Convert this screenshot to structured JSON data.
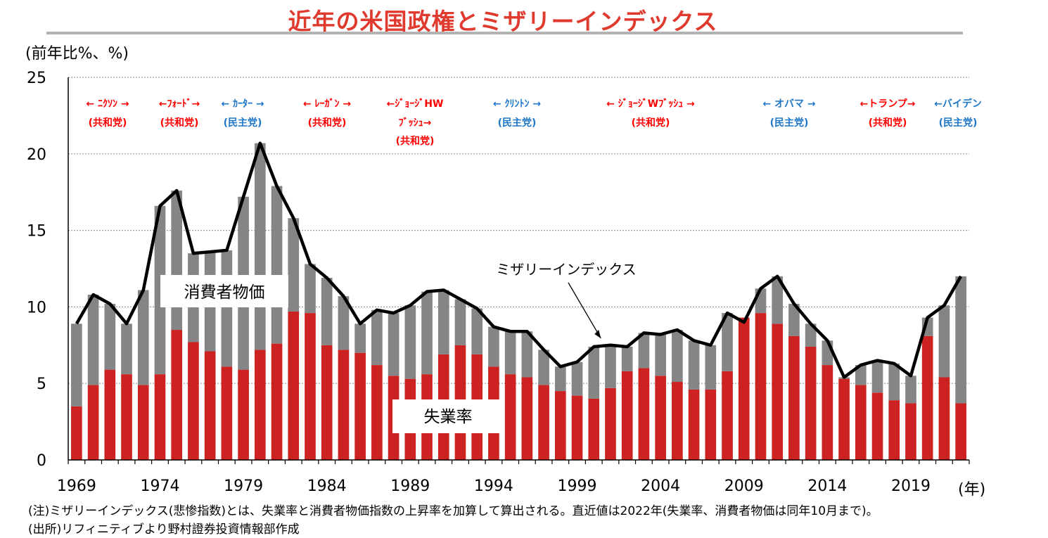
{
  "title": "近年の米国政権とミザリーインデックス",
  "y_unit": "(前年比%、%)",
  "x_unit": "(年)",
  "notes": [
    "(注)ミザリーインデックス(悲惨指数)とは、失業率と消費者物価指数の上昇率を加算して算出される。直近値は2022年(失業率、消費者物価は同年10月まで)。",
    "(出所)リフィニティブより野村證券投資情報部作成"
  ],
  "colors": {
    "title": "#e03a2e",
    "unemployment": "#cc2222",
    "cpi": "#858585",
    "misery_line": "#000000",
    "republican": "#ff0000",
    "democrat": "#1f77c8",
    "grid": "#999999"
  },
  "administrations": [
    {
      "name": "← ﾆｸｿﾝ →",
      "party": "(共和党)",
      "party_type": "republican"
    },
    {
      "name": "←ﾌｫｰﾄﾞ→",
      "party": "(共和党)",
      "party_type": "republican"
    },
    {
      "name": "← ｶｰﾀｰ →",
      "party": "(民主党)",
      "party_type": "democrat"
    },
    {
      "name": "← ﾚｰｶﾞﾝ →",
      "party": "(共和党)",
      "party_type": "republican"
    },
    {
      "name": "←ｼﾞｮｰｼﾞHW ﾌﾞｯｼｭ→",
      "party": "(共和党)",
      "party_type": "republican"
    },
    {
      "name": "← ｸﾘﾝﾄﾝ →",
      "party": "(民主党)",
      "party_type": "democrat"
    },
    {
      "name": "← ｼﾞｮｰｼﾞWﾌﾞｯｼｭ →",
      "party": "(共和党)",
      "party_type": "republican"
    },
    {
      "name": "← オバマ →",
      "party": "(民主党)",
      "party_type": "democrat"
    },
    {
      "name": "←トランプ→",
      "party": "(共和党)",
      "party_type": "republican"
    },
    {
      "name": "←バイデン",
      "party": "(民主党)",
      "party_type": "democrat"
    }
  ],
  "chart_data": {
    "type": "bar",
    "stacked": true,
    "x": [
      1969,
      1970,
      1971,
      1972,
      1973,
      1974,
      1975,
      1976,
      1977,
      1978,
      1979,
      1980,
      1981,
      1982,
      1983,
      1984,
      1985,
      1986,
      1987,
      1988,
      1989,
      1990,
      1991,
      1992,
      1993,
      1994,
      1995,
      1996,
      1997,
      1998,
      1999,
      2000,
      2001,
      2002,
      2003,
      2004,
      2005,
      2006,
      2007,
      2008,
      2009,
      2010,
      2011,
      2012,
      2013,
      2014,
      2015,
      2016,
      2017,
      2018,
      2019,
      2020,
      2021,
      2022
    ],
    "x_tick_labels": [
      "1969",
      "1974",
      "1979",
      "1984",
      "1989",
      "1994",
      "1999",
      "2004",
      "2009",
      "2014",
      "2019"
    ],
    "ylim": [
      0,
      25
    ],
    "y_ticks": [
      0,
      5,
      10,
      15,
      20,
      25
    ],
    "grid": true,
    "series": [
      {
        "name": "失業率",
        "kind": "bar",
        "values": [
          3.5,
          4.9,
          5.9,
          5.6,
          4.9,
          5.6,
          8.5,
          7.7,
          7.1,
          6.1,
          5.9,
          7.2,
          7.6,
          9.7,
          9.6,
          7.5,
          7.2,
          7.0,
          6.2,
          5.5,
          5.3,
          5.6,
          6.9,
          7.5,
          6.9,
          6.1,
          5.6,
          5.4,
          4.9,
          4.5,
          4.2,
          4.0,
          4.7,
          5.8,
          6.0,
          5.5,
          5.1,
          4.6,
          4.6,
          5.8,
          9.3,
          9.6,
          8.9,
          8.1,
          7.4,
          6.2,
          5.3,
          4.9,
          4.4,
          3.9,
          3.7,
          8.1,
          5.4,
          3.7
        ]
      },
      {
        "name": "消費者物価",
        "kind": "bar",
        "values": [
          5.4,
          5.9,
          4.3,
          3.3,
          6.2,
          11.0,
          9.1,
          5.8,
          6.5,
          7.6,
          11.3,
          13.5,
          10.3,
          6.1,
          3.2,
          4.4,
          3.5,
          1.9,
          3.6,
          4.1,
          4.8,
          5.4,
          4.2,
          3.0,
          3.0,
          2.6,
          2.8,
          3.0,
          2.3,
          1.6,
          2.2,
          3.4,
          2.8,
          1.6,
          2.3,
          2.7,
          3.4,
          3.2,
          2.9,
          3.8,
          -0.3,
          1.6,
          3.1,
          2.1,
          1.5,
          1.6,
          0.1,
          1.3,
          2.1,
          2.4,
          1.8,
          1.2,
          4.7,
          8.3
        ]
      },
      {
        "name": "ミザリーインデックス",
        "kind": "line",
        "values": [
          8.9,
          10.8,
          10.2,
          8.9,
          11.1,
          16.6,
          17.6,
          13.5,
          13.6,
          13.7,
          17.2,
          20.7,
          17.9,
          15.8,
          12.8,
          11.9,
          10.7,
          8.9,
          9.8,
          9.6,
          10.1,
          11.0,
          11.1,
          10.5,
          9.9,
          8.7,
          8.4,
          8.4,
          7.2,
          6.1,
          6.4,
          7.4,
          7.5,
          7.4,
          8.3,
          8.2,
          8.5,
          7.8,
          7.5,
          9.6,
          9.0,
          11.2,
          12.0,
          10.2,
          8.9,
          7.8,
          5.4,
          6.2,
          6.5,
          6.3,
          5.5,
          9.3,
          10.1,
          12.0
        ]
      }
    ],
    "bar_labels": {
      "unemployment": "失業率",
      "cpi": "消費者物価"
    },
    "line_annotation": "ミザリーインデックス"
  }
}
